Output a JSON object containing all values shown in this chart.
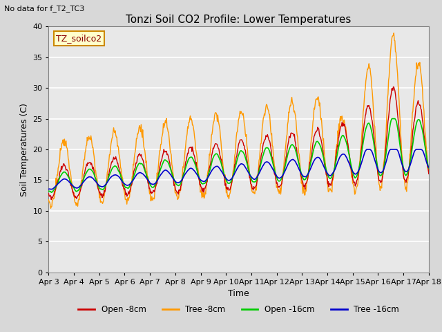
{
  "title": "Tonzi Soil CO2 Profile: Lower Temperatures",
  "subtitle": "No data for f_T2_TC3",
  "ylabel": "Soil Temperatures (C)",
  "xlabel": "Time",
  "legend_label": "TZ_soilco2",
  "ylim": [
    0,
    40
  ],
  "yticks": [
    0,
    5,
    10,
    15,
    20,
    25,
    30,
    35,
    40
  ],
  "xtick_labels": [
    "Apr 3",
    "Apr 4",
    "Apr 5",
    "Apr 6",
    "Apr 7",
    "Apr 8",
    "Apr 9",
    "Apr 10",
    "Apr 11",
    "Apr 12",
    "Apr 13",
    "Apr 14",
    "Apr 15",
    "Apr 16",
    "Apr 17",
    "Apr 18"
  ],
  "bg_color": "#d8d8d8",
  "plot_bg_color": "#e8e8e8",
  "colors": {
    "open8": "#cc0000",
    "tree8": "#ff9900",
    "open16": "#00cc00",
    "tree16": "#0000cc"
  },
  "series_names": [
    "Open -8cm",
    "Tree -8cm",
    "Open -16cm",
    "Tree -16cm"
  ],
  "n_points_per_day": 48,
  "n_days": 15
}
